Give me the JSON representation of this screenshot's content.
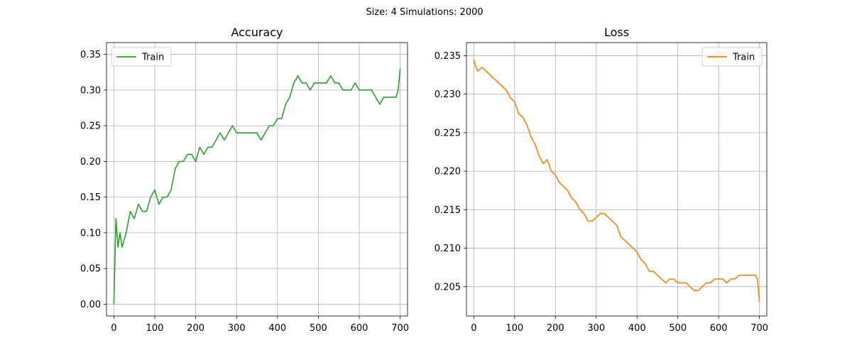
{
  "figure": {
    "suptitle": "Size: 4   Simulations: 2000"
  },
  "chart_data": [
    {
      "type": "line",
      "title": "Accuracy",
      "xlabel": "",
      "ylabel": "",
      "xlim": [
        -18,
        718
      ],
      "ylim": [
        -0.0165,
        0.3665
      ],
      "xticks": [
        0,
        100,
        200,
        300,
        400,
        500,
        600,
        700
      ],
      "yticks": [
        0.0,
        0.05,
        0.1,
        0.15,
        0.2,
        0.25,
        0.3,
        0.35
      ],
      "ytick_labels": [
        "0.00",
        "0.05",
        "0.10",
        "0.15",
        "0.20",
        "0.25",
        "0.30",
        "0.35"
      ],
      "grid": true,
      "legend_position": "upper-left",
      "color": "#2ca02c",
      "series": [
        {
          "name": "Train",
          "x": [
            0,
            5,
            10,
            15,
            20,
            25,
            30,
            40,
            50,
            60,
            70,
            80,
            90,
            100,
            110,
            120,
            130,
            140,
            150,
            160,
            170,
            180,
            190,
            200,
            210,
            220,
            230,
            240,
            250,
            260,
            270,
            280,
            290,
            300,
            310,
            320,
            330,
            340,
            350,
            360,
            370,
            380,
            390,
            400,
            410,
            420,
            430,
            440,
            450,
            460,
            470,
            480,
            490,
            500,
            510,
            520,
            530,
            540,
            550,
            560,
            570,
            580,
            590,
            600,
            610,
            620,
            630,
            640,
            650,
            660,
            670,
            680,
            690,
            695,
            700
          ],
          "values": [
            0.0,
            0.12,
            0.08,
            0.1,
            0.08,
            0.09,
            0.1,
            0.13,
            0.12,
            0.14,
            0.13,
            0.13,
            0.15,
            0.16,
            0.14,
            0.15,
            0.15,
            0.16,
            0.19,
            0.2,
            0.2,
            0.21,
            0.21,
            0.2,
            0.22,
            0.21,
            0.22,
            0.22,
            0.23,
            0.24,
            0.23,
            0.24,
            0.25,
            0.24,
            0.24,
            0.24,
            0.24,
            0.24,
            0.24,
            0.23,
            0.24,
            0.25,
            0.25,
            0.26,
            0.26,
            0.28,
            0.29,
            0.31,
            0.32,
            0.31,
            0.31,
            0.3,
            0.31,
            0.31,
            0.31,
            0.31,
            0.32,
            0.31,
            0.31,
            0.3,
            0.3,
            0.3,
            0.31,
            0.3,
            0.3,
            0.3,
            0.3,
            0.29,
            0.28,
            0.29,
            0.29,
            0.29,
            0.29,
            0.3,
            0.33
          ]
        }
      ]
    },
    {
      "type": "line",
      "title": "Loss",
      "xlabel": "",
      "ylabel": "",
      "xlim": [
        -18,
        718
      ],
      "ylim": [
        0.2012,
        0.2367
      ],
      "xticks": [
        0,
        100,
        200,
        300,
        400,
        500,
        600,
        700
      ],
      "yticks": [
        0.205,
        0.21,
        0.215,
        0.22,
        0.225,
        0.23,
        0.235
      ],
      "ytick_labels": [
        "0.205",
        "0.210",
        "0.215",
        "0.220",
        "0.225",
        "0.230",
        "0.235"
      ],
      "grid": true,
      "legend_position": "upper-right",
      "color": "#ff7f0e",
      "series": [
        {
          "name": "Train",
          "x": [
            0,
            5,
            10,
            20,
            30,
            40,
            50,
            60,
            70,
            80,
            90,
            100,
            110,
            120,
            130,
            140,
            150,
            160,
            170,
            180,
            190,
            200,
            210,
            220,
            230,
            240,
            250,
            260,
            270,
            280,
            290,
            300,
            310,
            320,
            330,
            340,
            350,
            360,
            370,
            380,
            390,
            400,
            410,
            420,
            430,
            440,
            450,
            460,
            470,
            480,
            490,
            500,
            510,
            520,
            530,
            540,
            550,
            560,
            570,
            580,
            590,
            600,
            610,
            620,
            630,
            640,
            650,
            660,
            670,
            680,
            690,
            695,
            700
          ],
          "values": [
            0.2345,
            0.2335,
            0.233,
            0.2335,
            0.233,
            0.2325,
            0.232,
            0.2315,
            0.231,
            0.2305,
            0.2295,
            0.229,
            0.2275,
            0.227,
            0.226,
            0.2245,
            0.2235,
            0.222,
            0.221,
            0.2215,
            0.22,
            0.2195,
            0.2185,
            0.218,
            0.2175,
            0.2165,
            0.216,
            0.215,
            0.2145,
            0.2135,
            0.2135,
            0.214,
            0.2145,
            0.2145,
            0.214,
            0.2135,
            0.213,
            0.2115,
            0.211,
            0.2105,
            0.21,
            0.2095,
            0.2085,
            0.208,
            0.207,
            0.207,
            0.2065,
            0.206,
            0.2055,
            0.206,
            0.206,
            0.2055,
            0.2055,
            0.2055,
            0.205,
            0.2045,
            0.2045,
            0.205,
            0.2055,
            0.2055,
            0.206,
            0.206,
            0.206,
            0.2055,
            0.206,
            0.206,
            0.2065,
            0.2065,
            0.2065,
            0.2065,
            0.2065,
            0.206,
            0.203
          ]
        }
      ]
    }
  ]
}
